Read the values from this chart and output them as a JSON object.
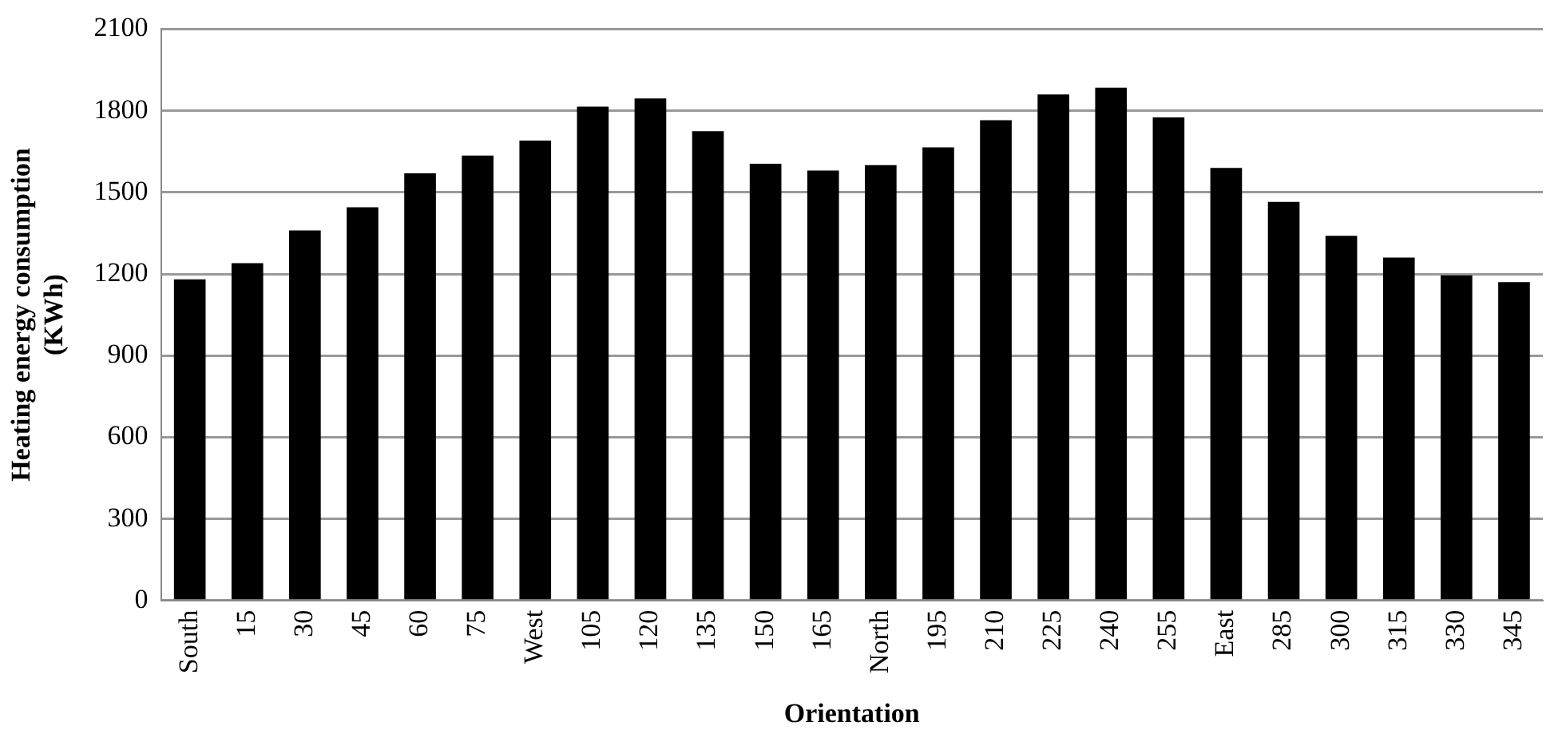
{
  "chart_data": {
    "type": "bar",
    "xlabel": "Orientation",
    "ylabel": "Heating energy consumption\n(KWh)",
    "categories": [
      "South",
      "15",
      "30",
      "45",
      "60",
      "75",
      "West",
      "105",
      "120",
      "135",
      "150",
      "165",
      "North",
      "195",
      "210",
      "225",
      "240",
      "255",
      "East",
      "285",
      "300",
      "315",
      "330",
      "345"
    ],
    "values": [
      1180,
      1240,
      1360,
      1445,
      1570,
      1635,
      1690,
      1815,
      1845,
      1725,
      1605,
      1580,
      1600,
      1665,
      1765,
      1860,
      1885,
      1775,
      1590,
      1465,
      1340,
      1260,
      1195,
      1170
    ],
    "color": "#000000",
    "ylim": [
      0,
      2100
    ],
    "yticks": [
      0,
      300,
      600,
      900,
      1200,
      1500,
      1800,
      2100
    ],
    "grid": "y",
    "legend": false
  }
}
